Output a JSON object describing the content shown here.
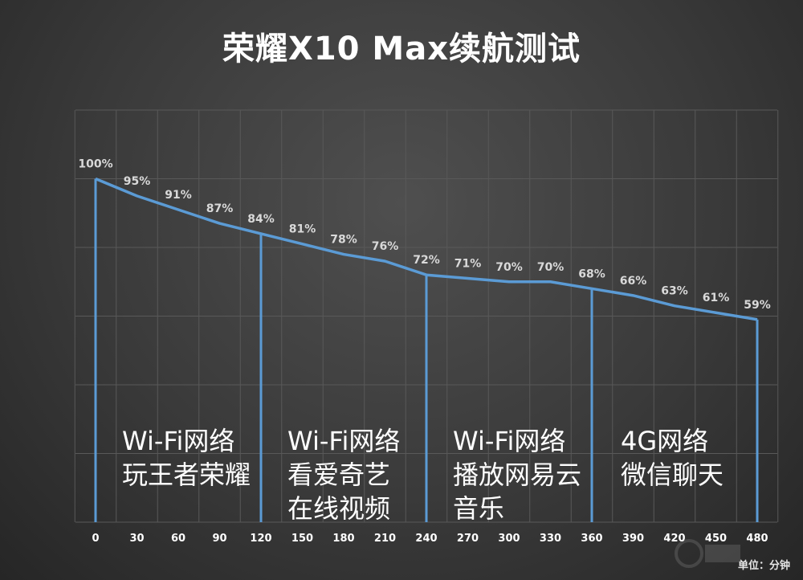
{
  "chart_data": {
    "type": "line",
    "title": "荣耀X10 Max续航测试",
    "unit_label": "单位：分钟",
    "x": [
      0,
      30,
      60,
      90,
      120,
      150,
      180,
      210,
      240,
      270,
      300,
      330,
      360,
      390,
      420,
      450,
      480
    ],
    "x_tick_labels": [
      "0",
      "30",
      "60",
      "90",
      "120",
      "150",
      "180",
      "210",
      "240",
      "270",
      "300",
      "330",
      "360",
      "390",
      "420",
      "450",
      "480"
    ],
    "series": [
      {
        "values": [
          100,
          95,
          91,
          87,
          84,
          81,
          78,
          76,
          72,
          71,
          70,
          70,
          68,
          66,
          63,
          61,
          59
        ]
      }
    ],
    "data_labels": [
      "100%",
      "95%",
      "91%",
      "87%",
      "84%",
      "81%",
      "78%",
      "76%",
      "72%",
      "71%",
      "70%",
      "70%",
      "68%",
      "66%",
      "63%",
      "61%",
      "59%"
    ],
    "ylim": [
      0,
      120
    ],
    "y_gridlines": true,
    "x_gridlines": true,
    "segment_markers": [
      0,
      120,
      240,
      360,
      480
    ],
    "segments": [
      {
        "lines": [
          "Wi-Fi网络",
          "玩王者荣耀"
        ]
      },
      {
        "lines": [
          "Wi-Fi网络",
          "看爱奇艺",
          "在线视频"
        ]
      },
      {
        "lines": [
          "Wi-Fi网络",
          "播放网易云",
          "音乐"
        ]
      },
      {
        "lines": [
          "4G网络",
          "微信聊天"
        ]
      }
    ],
    "colors": {
      "line": "#5b9bd5",
      "text": "#ffffff",
      "label": "#d9d9d9",
      "grid": "#595959"
    }
  }
}
